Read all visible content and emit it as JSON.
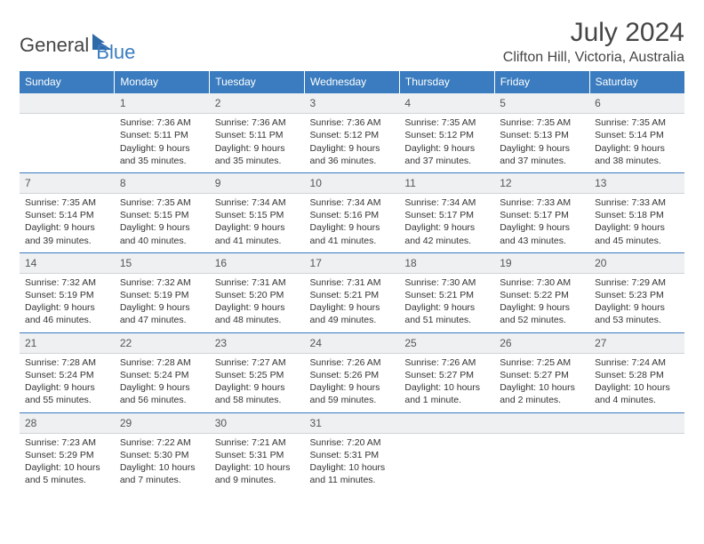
{
  "logo": {
    "part1": "General",
    "part2": "Blue"
  },
  "title": "July 2024",
  "location": "Clifton Hill, Victoria, Australia",
  "colors": {
    "header_bg": "#3a7cbf",
    "daynum_bg": "#eef0f1",
    "border": "#3a7cbf",
    "text": "#333333"
  },
  "days_of_week": [
    "Sunday",
    "Monday",
    "Tuesday",
    "Wednesday",
    "Thursday",
    "Friday",
    "Saturday"
  ],
  "weeks": [
    {
      "nums": [
        "",
        "1",
        "2",
        "3",
        "4",
        "5",
        "6"
      ],
      "cells": [
        "",
        "Sunrise: 7:36 AM\nSunset: 5:11 PM\nDaylight: 9 hours and 35 minutes.",
        "Sunrise: 7:36 AM\nSunset: 5:11 PM\nDaylight: 9 hours and 35 minutes.",
        "Sunrise: 7:36 AM\nSunset: 5:12 PM\nDaylight: 9 hours and 36 minutes.",
        "Sunrise: 7:35 AM\nSunset: 5:12 PM\nDaylight: 9 hours and 37 minutes.",
        "Sunrise: 7:35 AM\nSunset: 5:13 PM\nDaylight: 9 hours and 37 minutes.",
        "Sunrise: 7:35 AM\nSunset: 5:14 PM\nDaylight: 9 hours and 38 minutes."
      ]
    },
    {
      "nums": [
        "7",
        "8",
        "9",
        "10",
        "11",
        "12",
        "13"
      ],
      "cells": [
        "Sunrise: 7:35 AM\nSunset: 5:14 PM\nDaylight: 9 hours and 39 minutes.",
        "Sunrise: 7:35 AM\nSunset: 5:15 PM\nDaylight: 9 hours and 40 minutes.",
        "Sunrise: 7:34 AM\nSunset: 5:15 PM\nDaylight: 9 hours and 41 minutes.",
        "Sunrise: 7:34 AM\nSunset: 5:16 PM\nDaylight: 9 hours and 41 minutes.",
        "Sunrise: 7:34 AM\nSunset: 5:17 PM\nDaylight: 9 hours and 42 minutes.",
        "Sunrise: 7:33 AM\nSunset: 5:17 PM\nDaylight: 9 hours and 43 minutes.",
        "Sunrise: 7:33 AM\nSunset: 5:18 PM\nDaylight: 9 hours and 45 minutes."
      ]
    },
    {
      "nums": [
        "14",
        "15",
        "16",
        "17",
        "18",
        "19",
        "20"
      ],
      "cells": [
        "Sunrise: 7:32 AM\nSunset: 5:19 PM\nDaylight: 9 hours and 46 minutes.",
        "Sunrise: 7:32 AM\nSunset: 5:19 PM\nDaylight: 9 hours and 47 minutes.",
        "Sunrise: 7:31 AM\nSunset: 5:20 PM\nDaylight: 9 hours and 48 minutes.",
        "Sunrise: 7:31 AM\nSunset: 5:21 PM\nDaylight: 9 hours and 49 minutes.",
        "Sunrise: 7:30 AM\nSunset: 5:21 PM\nDaylight: 9 hours and 51 minutes.",
        "Sunrise: 7:30 AM\nSunset: 5:22 PM\nDaylight: 9 hours and 52 minutes.",
        "Sunrise: 7:29 AM\nSunset: 5:23 PM\nDaylight: 9 hours and 53 minutes."
      ]
    },
    {
      "nums": [
        "21",
        "22",
        "23",
        "24",
        "25",
        "26",
        "27"
      ],
      "cells": [
        "Sunrise: 7:28 AM\nSunset: 5:24 PM\nDaylight: 9 hours and 55 minutes.",
        "Sunrise: 7:28 AM\nSunset: 5:24 PM\nDaylight: 9 hours and 56 minutes.",
        "Sunrise: 7:27 AM\nSunset: 5:25 PM\nDaylight: 9 hours and 58 minutes.",
        "Sunrise: 7:26 AM\nSunset: 5:26 PM\nDaylight: 9 hours and 59 minutes.",
        "Sunrise: 7:26 AM\nSunset: 5:27 PM\nDaylight: 10 hours and 1 minute.",
        "Sunrise: 7:25 AM\nSunset: 5:27 PM\nDaylight: 10 hours and 2 minutes.",
        "Sunrise: 7:24 AM\nSunset: 5:28 PM\nDaylight: 10 hours and 4 minutes."
      ]
    },
    {
      "nums": [
        "28",
        "29",
        "30",
        "31",
        "",
        "",
        ""
      ],
      "cells": [
        "Sunrise: 7:23 AM\nSunset: 5:29 PM\nDaylight: 10 hours and 5 minutes.",
        "Sunrise: 7:22 AM\nSunset: 5:30 PM\nDaylight: 10 hours and 7 minutes.",
        "Sunrise: 7:21 AM\nSunset: 5:31 PM\nDaylight: 10 hours and 9 minutes.",
        "Sunrise: 7:20 AM\nSunset: 5:31 PM\nDaylight: 10 hours and 11 minutes.",
        "",
        "",
        ""
      ]
    }
  ]
}
